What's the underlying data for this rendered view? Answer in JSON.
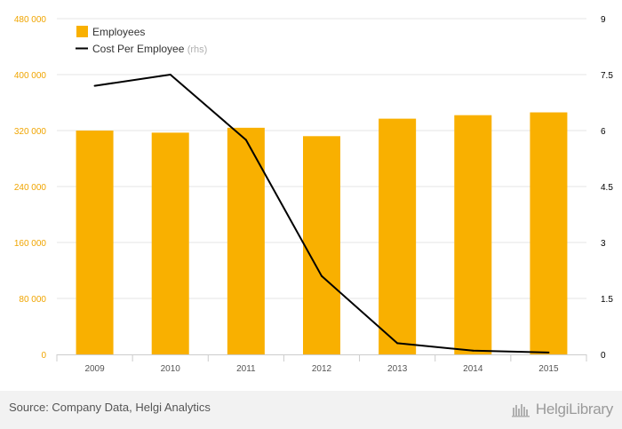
{
  "chart_data": {
    "type": "bar+line",
    "categories": [
      "2009",
      "2010",
      "2011",
      "2012",
      "2013",
      "2014",
      "2015"
    ],
    "series": [
      {
        "name": "Employees",
        "type": "bar",
        "axis": "left",
        "values": [
          320000,
          317000,
          324000,
          312000,
          337000,
          342000,
          346000
        ]
      },
      {
        "name": "Cost Per Employee",
        "type": "line",
        "axis": "right",
        "values": [
          7.2,
          7.5,
          5.75,
          2.1,
          0.3,
          0.1,
          0.05
        ]
      }
    ],
    "y_left": {
      "min": 0,
      "max": 480000,
      "ticks": [
        {
          "v": 0,
          "label": "0"
        },
        {
          "v": 80000,
          "label": "80 000"
        },
        {
          "v": 160000,
          "label": "160 000"
        },
        {
          "v": 240000,
          "label": "240 000"
        },
        {
          "v": 320000,
          "label": "320 000"
        },
        {
          "v": 400000,
          "label": "400 000"
        },
        {
          "v": 480000,
          "label": "480 000"
        }
      ]
    },
    "y_right": {
      "min": 0,
      "max": 9,
      "ticks": [
        {
          "v": 0,
          "label": "0"
        },
        {
          "v": 1.5,
          "label": "1.5"
        },
        {
          "v": 3,
          "label": "3"
        },
        {
          "v": 4.5,
          "label": "4.5"
        },
        {
          "v": 6,
          "label": "6"
        },
        {
          "v": 7.5,
          "label": "7.5"
        },
        {
          "v": 9,
          "label": "9"
        }
      ]
    },
    "legend": {
      "position": "top-left",
      "items": [
        {
          "label": "Employees",
          "suffix": ""
        },
        {
          "label": "Cost Per Employee",
          "suffix": "(rhs)"
        }
      ]
    },
    "grid": true
  },
  "colors": {
    "bar": "#f9b000",
    "line": "#000000",
    "grid": "#e6e6e6",
    "left_tick": "#f0a500",
    "right_tick": "#000000",
    "axis_text": "#555555"
  },
  "footer": {
    "source": "Source: Company Data, Helgi Analytics",
    "logo": "HelgiLibrary"
  }
}
